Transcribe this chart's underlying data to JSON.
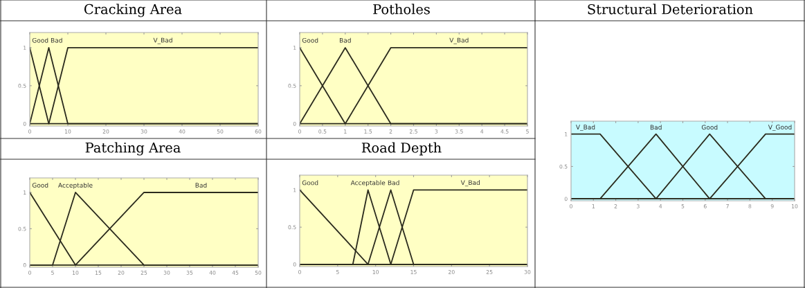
{
  "chart_data": [
    {
      "type": "line",
      "title": "Cracking Area",
      "xlim": [
        0,
        60
      ],
      "xticks": [
        0,
        10,
        20,
        30,
        40,
        50,
        60
      ],
      "ylim": [
        -0.03,
        1.2
      ],
      "yticks": [
        0,
        0.5,
        1
      ],
      "grid": false,
      "marker": "none",
      "line_style": "solid",
      "series": [
        {
          "name": "Good",
          "color": "#2b2b1e",
          "x": [
            0,
            5,
            60
          ],
          "values": [
            1,
            0,
            0
          ]
        },
        {
          "name": "Bad",
          "color": "#2b2b1e",
          "x": [
            0,
            5,
            10,
            60
          ],
          "values": [
            0,
            1,
            0,
            0
          ]
        },
        {
          "name": "V_Bad",
          "color": "#2b2b1e",
          "x": [
            0,
            5,
            10,
            60
          ],
          "values": [
            0,
            0,
            1,
            1
          ]
        }
      ]
    },
    {
      "type": "line",
      "title": "Potholes",
      "xlim": [
        0,
        5
      ],
      "xticks": [
        0,
        0.5,
        1,
        1.5,
        2,
        2.5,
        3,
        3.5,
        4,
        4.5,
        5
      ],
      "ylim": [
        -0.03,
        1.2
      ],
      "yticks": [
        0,
        0.5,
        1
      ],
      "grid": false,
      "marker": "none",
      "line_style": "solid",
      "series": [
        {
          "name": "Good",
          "color": "#2b2b1e",
          "x": [
            0,
            1,
            5
          ],
          "values": [
            1,
            0,
            0
          ]
        },
        {
          "name": "Bad",
          "color": "#2b2b1e",
          "x": [
            0,
            1,
            2,
            5
          ],
          "values": [
            0,
            1,
            0,
            0
          ]
        },
        {
          "name": "V_Bad",
          "color": "#2b2b1e",
          "x": [
            0,
            1,
            2,
            5
          ],
          "values": [
            0,
            0,
            1,
            1
          ]
        }
      ]
    },
    {
      "type": "line",
      "title": "Structural Deterioration",
      "xlim": [
        0,
        10
      ],
      "xticks": [
        0,
        1,
        2,
        3,
        4,
        5,
        6,
        7,
        8,
        9,
        10
      ],
      "ylim": [
        -0.03,
        1.2
      ],
      "yticks": [
        0,
        0.5,
        1
      ],
      "grid": false,
      "marker": "none",
      "line_style": "solid",
      "series": [
        {
          "name": "V_Bad",
          "color": "#2b2b1e",
          "x": [
            0,
            1.3,
            3.8,
            10
          ],
          "values": [
            1,
            1,
            0,
            0
          ]
        },
        {
          "name": "Bad",
          "color": "#2b2b1e",
          "x": [
            0,
            1.3,
            3.8,
            6.2,
            10
          ],
          "values": [
            0,
            0,
            1,
            0,
            0
          ]
        },
        {
          "name": "Good",
          "color": "#2b2b1e",
          "x": [
            0,
            3.8,
            6.2,
            8.7,
            10
          ],
          "values": [
            0,
            0,
            1,
            0,
            0
          ]
        },
        {
          "name": "V_Good",
          "color": "#2b2b1e",
          "x": [
            0,
            6.2,
            8.7,
            10
          ],
          "values": [
            0,
            0,
            1,
            1
          ]
        }
      ]
    },
    {
      "type": "line",
      "title": "Patching Area",
      "xlim": [
        0,
        50
      ],
      "xticks": [
        0,
        5,
        10,
        15,
        20,
        25,
        30,
        35,
        40,
        45,
        50
      ],
      "ylim": [
        -0.03,
        1.2
      ],
      "yticks": [
        0,
        0.5,
        1
      ],
      "grid": false,
      "marker": "none",
      "line_style": "solid",
      "series": [
        {
          "name": "Good",
          "color": "#2b2b1e",
          "x": [
            0,
            10,
            50
          ],
          "values": [
            1,
            0,
            0
          ]
        },
        {
          "name": "Acceptable",
          "color": "#2b2b1e",
          "x": [
            0,
            5,
            10,
            25,
            50
          ],
          "values": [
            0,
            0,
            1,
            0,
            0
          ]
        },
        {
          "name": "Bad",
          "color": "#2b2b1e",
          "x": [
            0,
            10,
            25,
            50
          ],
          "values": [
            0,
            0,
            1,
            1
          ]
        }
      ]
    },
    {
      "type": "line",
      "title": "Road Depth",
      "xlim": [
        0,
        30
      ],
      "xticks": [
        0,
        5,
        10,
        15,
        20,
        25,
        30
      ],
      "ylim": [
        -0.03,
        1.2
      ],
      "yticks": [
        0,
        0.5,
        1
      ],
      "grid": false,
      "marker": "none",
      "line_style": "solid",
      "series": [
        {
          "name": "Good",
          "color": "#2b2b1e",
          "x": [
            0,
            9,
            30
          ],
          "values": [
            1,
            0,
            0
          ]
        },
        {
          "name": "Acceptable",
          "color": "#2b2b1e",
          "x": [
            0,
            7,
            9,
            12,
            30
          ],
          "values": [
            0,
            0,
            1,
            0,
            0
          ]
        },
        {
          "name": "Bad",
          "color": "#2b2b1e",
          "x": [
            0,
            9,
            12,
            15,
            30
          ],
          "values": [
            0,
            0,
            1,
            0,
            0
          ]
        },
        {
          "name": "V_Bad",
          "color": "#2b2b1e",
          "x": [
            0,
            12,
            15,
            30
          ],
          "values": [
            0,
            0,
            1,
            1
          ]
        }
      ]
    }
  ]
}
